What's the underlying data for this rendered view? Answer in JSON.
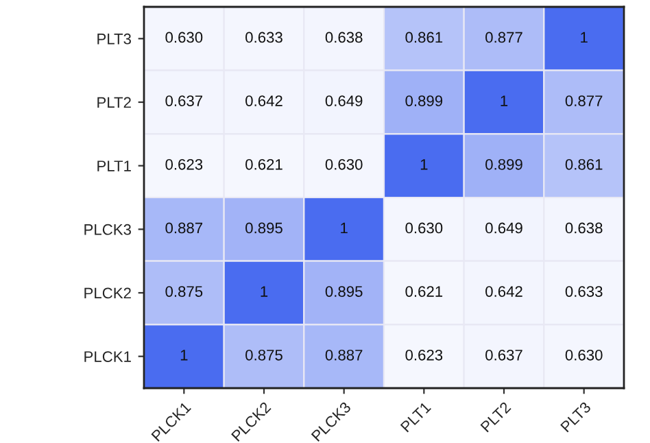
{
  "chart_data": {
    "type": "heatmap",
    "categories": [
      "PLCK1",
      "PLCK2",
      "PLCK3",
      "PLT1",
      "PLT2",
      "PLT3"
    ],
    "y_categories": [
      "PLT3",
      "PLT2",
      "PLT1",
      "PLCK3",
      "PLCK2",
      "PLCK1"
    ],
    "cells": [
      [
        0.63,
        0.633,
        0.638,
        0.861,
        0.877,
        1
      ],
      [
        0.637,
        0.642,
        0.649,
        0.899,
        1,
        0.877
      ],
      [
        0.623,
        0.621,
        0.63,
        1,
        0.899,
        0.861
      ],
      [
        0.887,
        0.895,
        1,
        0.63,
        0.649,
        0.638
      ],
      [
        0.875,
        1,
        0.895,
        0.621,
        0.642,
        0.633
      ],
      [
        1,
        0.875,
        0.887,
        0.623,
        0.637,
        0.63
      ]
    ],
    "cell_labels": [
      [
        "0.630",
        "0.633",
        "0.638",
        "0.861",
        "0.877",
        "1"
      ],
      [
        "0.637",
        "0.642",
        "0.649",
        "0.899",
        "1",
        "0.877"
      ],
      [
        "0.623",
        "0.621",
        "0.630",
        "1",
        "0.899",
        "0.861"
      ],
      [
        "0.887",
        "0.895",
        "1",
        "0.630",
        "0.649",
        "0.638"
      ],
      [
        "0.875",
        "1",
        "0.895",
        "0.621",
        "0.642",
        "0.633"
      ],
      [
        "1",
        "0.875",
        "0.887",
        "0.623",
        "0.637",
        "0.630"
      ]
    ]
  }
}
